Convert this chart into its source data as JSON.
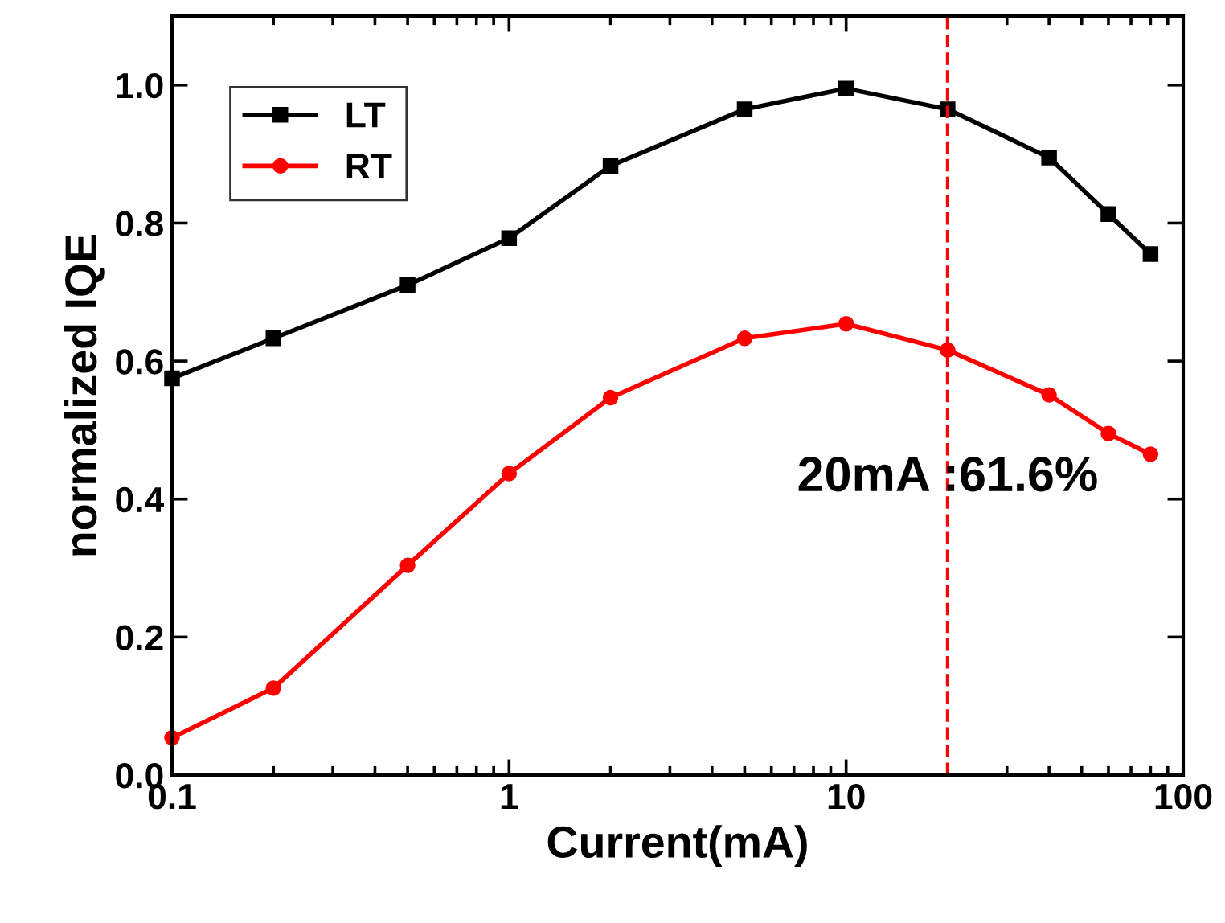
{
  "chart_data": {
    "type": "line",
    "xlabel": "Current(mA)",
    "ylabel": "normalized IQE",
    "log": "x",
    "xlim": [
      0.1,
      100
    ],
    "ylim": [
      0,
      1.1
    ],
    "xticks": [
      0.1,
      1,
      10,
      100
    ],
    "yticks": [
      {
        "value": 0,
        "label": "0.0"
      },
      0.2,
      0.4,
      0.6,
      0.8,
      {
        "value": 1,
        "label": "1.0"
      }
    ],
    "x": [
      0.1,
      0.2,
      0.5,
      1,
      2,
      5,
      10,
      20,
      40,
      60,
      80
    ],
    "series": [
      {
        "name": "LT",
        "color": "#000000",
        "marker": "square",
        "values": [
          0.575,
          0.633,
          0.71,
          0.778,
          0.883,
          0.965,
          0.995,
          0.965,
          0.895,
          0.813,
          0.755
        ]
      },
      {
        "name": "RT",
        "color": "#ff0000",
        "marker": "circle",
        "values": [
          0.054,
          0.126,
          0.304,
          0.437,
          0.547,
          0.633,
          0.654,
          0.616,
          0.551,
          0.495,
          0.465
        ]
      }
    ],
    "ref_lines": [
      {
        "axis": "x",
        "value": 20,
        "color": "#ff0000",
        "line_style": "dashed"
      }
    ],
    "annotations": [
      {
        "text": "20mA :61.6%",
        "x": 20,
        "y": 0.43
      }
    ],
    "legend": "top left",
    "grid": false
  }
}
